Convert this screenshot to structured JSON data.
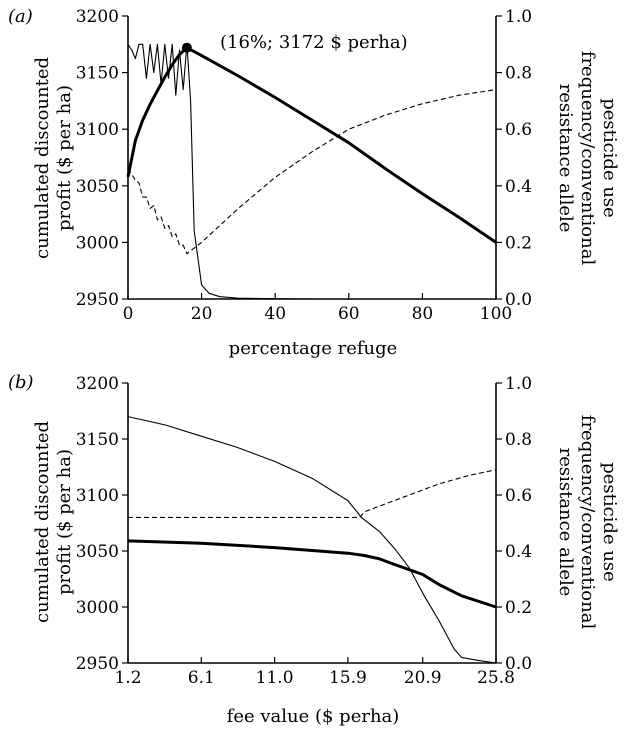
{
  "chart_data": [
    {
      "panel_label": "(a)",
      "type": "line",
      "xlabel": "percentage refuge",
      "ylabel_left": [
        "cumulated discounted",
        "profit ($ per ha)"
      ],
      "ylabel_right": [
        "resistance allele",
        "frequency/conventional",
        "pesticide use"
      ],
      "xlim": [
        0,
        100
      ],
      "ylim_left": [
        2950,
        3200
      ],
      "ylim_right": [
        0,
        1
      ],
      "xticks": [
        "0",
        "20",
        "40",
        "60",
        "80",
        "100"
      ],
      "xtick_values": [
        0,
        20,
        40,
        60,
        80,
        100
      ],
      "yticks_left": [
        "2950",
        "3000",
        "3050",
        "3100",
        "3150",
        "3200"
      ],
      "yticks_right": [
        "0.0",
        "0.2",
        "0.4",
        "0.6",
        "0.8",
        "1.0"
      ],
      "grid": false,
      "annotation": {
        "text": "(16%; 3172 $ perha)",
        "x": 16,
        "y": 3172
      },
      "series": [
        {
          "style": "thick-solid",
          "axis": "left",
          "x": [
            0,
            2,
            4,
            6,
            8,
            10,
            12,
            14,
            16,
            20,
            30,
            40,
            50,
            60,
            70,
            80,
            90,
            100
          ],
          "y": [
            3058,
            3090,
            3108,
            3122,
            3134,
            3146,
            3157,
            3166,
            3172,
            3165,
            3147,
            3128,
            3108,
            3088,
            3065,
            3043,
            3022,
            3000
          ]
        },
        {
          "style": "thin-solid",
          "axis": "right",
          "x": [
            0,
            1,
            2,
            3,
            4,
            5,
            6,
            7,
            8,
            9,
            10,
            11,
            12,
            13,
            14,
            15,
            16,
            17,
            18,
            20,
            22,
            25,
            30,
            40,
            50,
            60,
            70,
            80,
            90,
            100
          ],
          "y": [
            0.9,
            0.88,
            0.85,
            0.9,
            0.9,
            0.78,
            0.9,
            0.8,
            0.9,
            0.76,
            0.9,
            0.78,
            0.9,
            0.72,
            0.88,
            0.74,
            0.9,
            0.7,
            0.24,
            0.05,
            0.02,
            0.008,
            0.003,
            0.001,
            0,
            0,
            0,
            0,
            0,
            0
          ]
        },
        {
          "style": "dashed",
          "axis": "right",
          "x": [
            0,
            2,
            3,
            4,
            5,
            6,
            7,
            8,
            9,
            10,
            11,
            12,
            13,
            14,
            15,
            16,
            17,
            20,
            30,
            40,
            50,
            60,
            70,
            80,
            90,
            100
          ],
          "y": [
            0.46,
            0.42,
            0.41,
            0.36,
            0.36,
            0.32,
            0.33,
            0.28,
            0.29,
            0.25,
            0.26,
            0.22,
            0.23,
            0.19,
            0.19,
            0.16,
            0.17,
            0.2,
            0.32,
            0.43,
            0.52,
            0.6,
            0.65,
            0.69,
            0.72,
            0.74
          ]
        }
      ]
    },
    {
      "panel_label": "(b)",
      "type": "line",
      "xlabel": "fee value ($ perha)",
      "ylabel_left": [
        "cumulated discounted",
        "profit ($ per ha)"
      ],
      "ylabel_right": [
        "resistance allele",
        "frequency/conventional",
        "pesticide use"
      ],
      "xlim": [
        1.2,
        25.8
      ],
      "ylim_left": [
        2950,
        3200
      ],
      "ylim_right": [
        0,
        1
      ],
      "xticks": [
        "1.2",
        "6.1",
        "11.0",
        "15.9",
        "20.9",
        "25.8"
      ],
      "xtick_values": [
        1.2,
        6.1,
        11.0,
        15.9,
        20.9,
        25.8
      ],
      "yticks_left": [
        "2950",
        "3000",
        "3050",
        "3100",
        "3150",
        "3200"
      ],
      "yticks_right": [
        "0.0",
        "0.2",
        "0.4",
        "0.6",
        "0.8",
        "1.0"
      ],
      "grid": false,
      "series": [
        {
          "style": "thick-solid",
          "axis": "left",
          "x": [
            1.2,
            6.1,
            11.0,
            15.9,
            17.0,
            18.0,
            19.0,
            20.9,
            22.0,
            23.5,
            25.8
          ],
          "y": [
            3059,
            3057,
            3053,
            3048,
            3046,
            3043,
            3038,
            3029,
            3020,
            3010,
            3000
          ]
        },
        {
          "style": "thin-solid",
          "axis": "right",
          "x": [
            1.2,
            3.7,
            6.1,
            8.5,
            11.0,
            13.5,
            15.9,
            16.8,
            18.0,
            19.0,
            20.0,
            21.0,
            22.0,
            23.0,
            23.5,
            24.5,
            25.8
          ],
          "y": [
            0.88,
            0.85,
            0.81,
            0.77,
            0.72,
            0.66,
            0.58,
            0.52,
            0.47,
            0.41,
            0.34,
            0.24,
            0.15,
            0.05,
            0.02,
            0.01,
            0.0
          ]
        },
        {
          "style": "dashed",
          "axis": "right",
          "x": [
            1.2,
            6.1,
            11.0,
            15.9,
            16.7,
            17.0,
            18.0,
            20.0,
            22.0,
            24.0,
            25.8
          ],
          "y": [
            0.52,
            0.52,
            0.52,
            0.52,
            0.52,
            0.54,
            0.56,
            0.6,
            0.64,
            0.67,
            0.69
          ]
        }
      ]
    }
  ]
}
